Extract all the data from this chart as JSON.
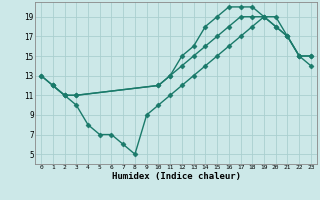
{
  "xlabel": "Humidex (Indice chaleur)",
  "bg_color": "#cce8e8",
  "grid_color": "#aacfcf",
  "line_color": "#1a7a6a",
  "xlim": [
    -0.5,
    23.5
  ],
  "ylim": [
    4,
    20.5
  ],
  "xticks": [
    0,
    1,
    2,
    3,
    4,
    5,
    6,
    7,
    8,
    9,
    10,
    11,
    12,
    13,
    14,
    15,
    16,
    17,
    18,
    19,
    20,
    21,
    22,
    23
  ],
  "yticks": [
    5,
    7,
    9,
    11,
    13,
    15,
    17,
    19
  ],
  "line1_x": [
    0,
    1,
    2,
    3,
    10,
    11,
    12,
    13,
    14,
    15,
    16,
    17,
    18,
    19,
    20,
    21,
    22,
    23
  ],
  "line1_y": [
    13,
    12,
    11,
    11,
    12,
    13,
    14,
    15,
    16,
    17,
    18,
    19,
    19,
    19,
    18,
    17,
    15,
    15
  ],
  "line2_x": [
    0,
    1,
    2,
    3,
    4,
    5,
    6,
    7,
    8,
    9,
    10,
    11,
    12,
    13,
    14,
    15,
    16,
    17,
    18,
    19,
    20,
    21,
    22,
    23
  ],
  "line2_y": [
    13,
    12,
    11,
    10,
    8,
    7,
    7,
    6,
    5,
    9,
    10,
    11,
    12,
    13,
    14,
    15,
    16,
    17,
    18,
    19,
    19,
    17,
    15,
    15
  ],
  "line3_x": [
    1,
    2,
    3,
    10,
    11,
    12,
    13,
    14,
    15,
    16,
    17,
    18,
    19,
    20,
    21,
    22,
    23
  ],
  "line3_y": [
    12,
    11,
    11,
    12,
    13,
    15,
    16,
    18,
    19,
    20,
    20,
    20,
    19,
    18,
    17,
    15,
    14
  ]
}
